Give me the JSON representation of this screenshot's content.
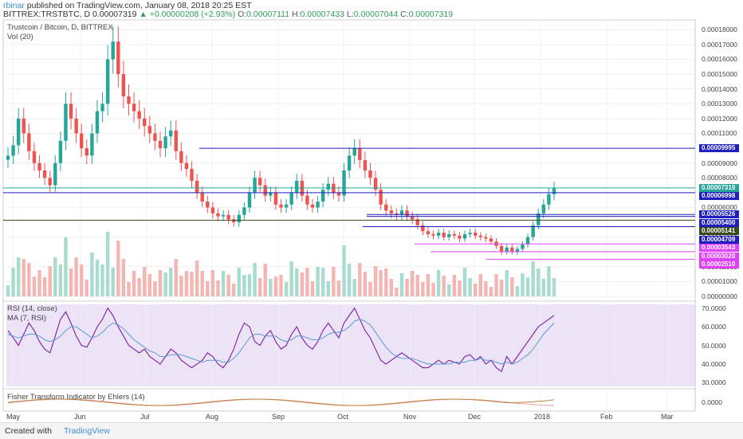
{
  "header": {
    "user": "rbinar",
    "published_text": "published on TradingView.com, January 08, 2018 20:25 EST",
    "symbol_line": "BITTREX:TRSTBTC, D",
    "last": "0.00007319",
    "change": "▲ +0.00000208 (+2.93%)",
    "o_label": "O:",
    "o_value": "0.00007111",
    "h_label": "H:",
    "h_value": "0.00007433",
    "l_label": "L:",
    "l_value": "0.00007044",
    "c_label": "C:",
    "c_value": "0.00007319"
  },
  "panes": {
    "main_title": "Trustcoin / Bitcoin, D, BITTREX",
    "vol_title": "Vol (20)",
    "rsi_title": "RSI (14, close)",
    "rsi_ma_title": "MA (7, RSI)",
    "fisher_title": "Fisher Transform Indicator by Ehlers (14)"
  },
  "footer": {
    "created_with": "Created with",
    "brand": "TradingView"
  },
  "colors": {
    "up": "#26a69a",
    "down": "#ef5350",
    "hline_blue": "#1f1fbf",
    "hline_magenta": "#e040fb",
    "hline_olive": "#6b7a33",
    "rsi_bg": "#ece3f7",
    "rsi_line": "#7b1fa2"
  },
  "chart_data": [
    {
      "type": "candlestick",
      "title": "Trustcoin / Bitcoin, D, BITTREX",
      "x_tick_labels": [
        "May",
        "Jun",
        "Jul",
        "Aug",
        "Sep",
        "Oct",
        "Nov",
        "Dec",
        "2018",
        "Feb",
        "Mar"
      ],
      "y_tick_labels": [
        "0.00018000",
        "0.00017000",
        "0.00016000",
        "0.00015000",
        "0.00014000",
        "0.00013000",
        "0.00012000",
        "0.00011000",
        "0.00009000",
        "0.00008000",
        "0.00006000",
        "0.00004000",
        "0.00002000",
        "0.00001000",
        "0.00000000"
      ],
      "ylim": [
        0,
        0.000185
      ],
      "price_lines": [
        {
          "value": 9.995e-05,
          "label": "0.00009995",
          "color": "#1f1fbf"
        },
        {
          "value": 7.319e-05,
          "label": "0.00007319",
          "color": "#26a69a"
        },
        {
          "value": 6.998e-05,
          "label": "0.00006998",
          "color": "#1f1fbf"
        },
        {
          "value": 5.526e-05,
          "label": "0.00005526",
          "color": "#1f1fbf"
        },
        {
          "value": 5.4e-05,
          "label": "0.00005400",
          "color": "#1f1fbf"
        },
        {
          "value": 5.141e-05,
          "label": "0.00005141",
          "color": "#3a4a1a"
        },
        {
          "value": 4.709e-05,
          "label": "0.00004709",
          "color": "#1f1fbf"
        },
        {
          "value": 3.543e-05,
          "label": "0.00003543",
          "color": "#e040fb"
        },
        {
          "value": 3.02e-05,
          "label": "0.00003020",
          "color": "#e040fb"
        },
        {
          "value": 2.51e-05,
          "label": "0.00002510",
          "color": "#e040fb"
        }
      ],
      "close_series": [
        9.5e-05,
        0.000102,
        0.00012,
        0.00011,
        9.8e-05,
        9e-05,
        8.5e-05,
        8e-05,
        7.5e-05,
        9e-05,
        0.000105,
        0.00013,
        0.00012,
        0.00011,
        0.0001,
        9.5e-05,
        0.00011,
        0.000125,
        0.00013,
        0.00016,
        0.000172,
        0.00015,
        0.000135,
        0.00013,
        0.000125,
        0.00012,
        0.000115,
        0.00011,
        0.000105,
        0.0001,
        0.000108,
        0.000112,
        9.8e-05,
        9e-05,
        8.6e-05,
        7.8e-05,
        7e-05,
        6.4e-05,
        6e-05,
        5.6e-05,
        5.4e-05,
        5.5e-05,
        5.2e-05,
        5e-05,
        5.5e-05,
        6e-05,
        7e-05,
        8e-05,
        7.5e-05,
        6.8e-05,
        7e-05,
        6.2e-05,
        6e-05,
        6.2e-05,
        7e-05,
        7.8e-05,
        6.8e-05,
        6.2e-05,
        6e-05,
        6.4e-05,
        7.2e-05,
        7.6e-05,
        7e-05,
        6.8e-05,
        8.5e-05,
        9.5e-05,
        0.0001,
        9.2e-05,
        8.5e-05,
        8e-05,
        7.2e-05,
        6.2e-05,
        5.8e-05,
        5.6e-05,
        5.5e-05,
        5.8e-05,
        5.4e-05,
        5.2e-05,
        4.8e-05,
        4.4e-05,
        4.2e-05,
        4.1e-05,
        4.3e-05,
        4e-05,
        4.2e-05,
        4.1e-05,
        3.9e-05,
        4.2e-05,
        4.3e-05,
        4.1e-05,
        4e-05,
        3.9e-05,
        3.7e-05,
        3.4e-05,
        3e-05,
        3.3e-05,
        3e-05,
        3.2e-05,
        3.5e-05,
        4e-05,
        4.8e-05,
        5.6e-05,
        6.2e-05,
        6.9e-05,
        7.3e-05
      ]
    },
    {
      "type": "line",
      "title": "RSI (14, close)",
      "y_tick_labels": [
        "70.0000",
        "60.0000",
        "50.0000",
        "40.0000",
        "30.0000"
      ],
      "ylim": [
        28,
        72
      ],
      "series": [
        {
          "name": "RSI (14, close)",
          "values": [
            58,
            54,
            50,
            56,
            62,
            58,
            52,
            48,
            46,
            55,
            64,
            68,
            62,
            55,
            50,
            49,
            54,
            60,
            64,
            70,
            66,
            60,
            55,
            50,
            48,
            46,
            48,
            44,
            42,
            40,
            44,
            48,
            46,
            42,
            40,
            38,
            40,
            42,
            46,
            44,
            40,
            38,
            42,
            48,
            56,
            62,
            60,
            52,
            50,
            55,
            58,
            52,
            48,
            50,
            56,
            60,
            54,
            50,
            48,
            52,
            58,
            62,
            58,
            54,
            62,
            66,
            70,
            64,
            58,
            54,
            48,
            42,
            40,
            42,
            44,
            46,
            44,
            42,
            40,
            38,
            38,
            40,
            42,
            40,
            42,
            41,
            40,
            44,
            45,
            42,
            44,
            40,
            42,
            38,
            36,
            44,
            40,
            44,
            48,
            52,
            56,
            60,
            62,
            64,
            66
          ]
        },
        {
          "name": "MA (7, RSI)",
          "values": [
            56,
            55,
            54,
            55,
            56,
            56,
            55,
            53,
            52,
            53,
            55,
            58,
            60,
            60,
            58,
            56,
            54,
            55,
            57,
            60,
            62,
            61,
            59,
            56,
            53,
            51,
            49,
            47,
            46,
            44,
            44,
            45,
            45,
            45,
            44,
            43,
            42,
            41,
            42,
            42,
            42,
            41,
            41,
            43,
            46,
            50,
            54,
            56,
            56,
            55,
            55,
            55,
            53,
            52,
            53,
            55,
            55,
            54,
            53,
            53,
            54,
            56,
            57,
            57,
            58,
            60,
            63,
            64,
            63,
            61,
            57,
            53,
            49,
            46,
            44,
            43,
            43,
            43,
            42,
            41,
            40,
            40,
            40,
            40,
            40,
            41,
            41,
            41,
            42,
            42,
            43,
            42,
            42,
            41,
            40,
            41,
            40,
            41,
            43,
            45,
            48,
            52,
            56,
            59,
            62
          ]
        }
      ]
    },
    {
      "type": "line",
      "title": "Fisher Transform Indicator by Ehlers (14)",
      "y_tick_labels": [
        "0.0000"
      ]
    }
  ]
}
